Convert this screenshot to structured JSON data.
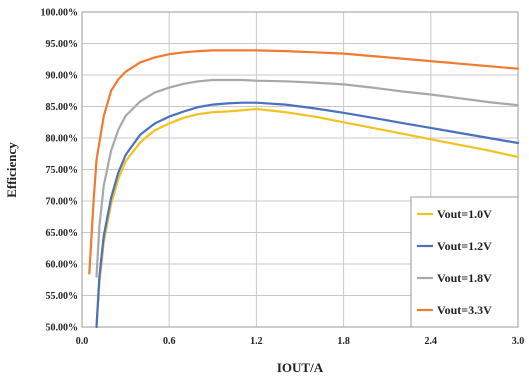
{
  "chart_data": {
    "type": "line",
    "xlabel": "IOUT/A",
    "ylabel": "Efficiency",
    "xlim": [
      0.0,
      3.0
    ],
    "ylim": [
      50,
      100
    ],
    "grid": true,
    "legend_position": "bottom-right",
    "x_ticks": [
      "0.0",
      "0.6",
      "1.2",
      "1.8",
      "2.4",
      "3.0"
    ],
    "y_ticks": [
      "50.00%",
      "55.00%",
      "60.00%",
      "65.00%",
      "70.00%",
      "75.00%",
      "80.00%",
      "85.00%",
      "90.00%",
      "95.00%",
      "100.00%"
    ],
    "series": [
      {
        "name": "Vout=1.0V",
        "color": "#f2c31f",
        "x": [
          0.1,
          0.12,
          0.15,
          0.2,
          0.25,
          0.3,
          0.4,
          0.5,
          0.6,
          0.7,
          0.8,
          0.9,
          1.0,
          1.1,
          1.2,
          1.4,
          1.6,
          1.8,
          2.0,
          2.2,
          2.4,
          2.6,
          2.8,
          3.0
        ],
        "values": [
          50.0,
          57.0,
          63.5,
          69.5,
          73.5,
          76.3,
          79.3,
          81.2,
          82.3,
          83.2,
          83.8,
          84.1,
          84.2,
          84.4,
          84.6,
          84.1,
          83.4,
          82.5,
          81.6,
          80.7,
          79.8,
          78.9,
          78.0,
          77.0
        ]
      },
      {
        "name": "Vout=1.2V",
        "color": "#4a70c2",
        "x": [
          0.1,
          0.12,
          0.15,
          0.2,
          0.25,
          0.3,
          0.4,
          0.5,
          0.6,
          0.7,
          0.8,
          0.9,
          1.0,
          1.1,
          1.2,
          1.4,
          1.6,
          1.8,
          2.0,
          2.2,
          2.4,
          2.6,
          2.8,
          3.0
        ],
        "values": [
          50.0,
          58.0,
          64.5,
          70.5,
          74.5,
          77.3,
          80.5,
          82.3,
          83.4,
          84.2,
          84.9,
          85.3,
          85.5,
          85.6,
          85.6,
          85.3,
          84.7,
          84.0,
          83.2,
          82.4,
          81.6,
          80.8,
          80.0,
          79.2
        ]
      },
      {
        "name": "Vout=1.8V",
        "color": "#a8a8a8",
        "x": [
          0.1,
          0.12,
          0.15,
          0.2,
          0.25,
          0.3,
          0.4,
          0.5,
          0.6,
          0.7,
          0.8,
          0.9,
          1.0,
          1.1,
          1.2,
          1.4,
          1.6,
          1.8,
          2.0,
          2.2,
          2.4,
          2.6,
          2.8,
          3.0
        ],
        "values": [
          58.0,
          66.0,
          72.5,
          78.0,
          81.3,
          83.5,
          85.8,
          87.2,
          88.0,
          88.6,
          89.0,
          89.2,
          89.2,
          89.2,
          89.1,
          89.0,
          88.8,
          88.5,
          88.0,
          87.4,
          86.9,
          86.3,
          85.7,
          85.2
        ]
      },
      {
        "name": "Vout=3.3V",
        "color": "#ef7a30",
        "x": [
          0.05,
          0.08,
          0.1,
          0.15,
          0.2,
          0.25,
          0.3,
          0.4,
          0.5,
          0.6,
          0.7,
          0.8,
          0.9,
          1.0,
          1.2,
          1.4,
          1.6,
          1.8,
          2.0,
          2.2,
          2.4,
          2.6,
          2.8,
          3.0
        ],
        "values": [
          58.5,
          70.0,
          76.5,
          83.5,
          87.5,
          89.3,
          90.5,
          92.0,
          92.8,
          93.3,
          93.6,
          93.8,
          93.9,
          93.9,
          93.9,
          93.8,
          93.6,
          93.4,
          93.0,
          92.6,
          92.2,
          91.8,
          91.4,
          91.0
        ]
      }
    ]
  }
}
